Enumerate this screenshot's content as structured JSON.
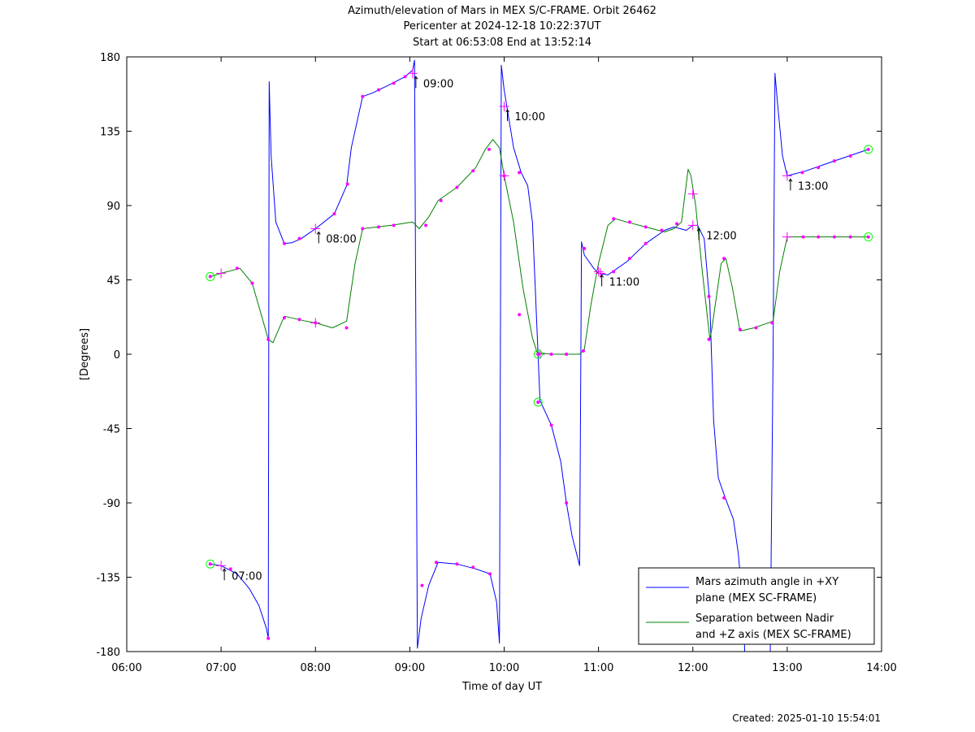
{
  "chart_data": {
    "type": "line",
    "title": [
      "Azimuth/elevation of Mars in MEX S/C-FRAME.  Orbit 26462",
      "Pericenter at 2024-12-18 10:22:37UT",
      "Start at 06:53:08 End at 13:52:14"
    ],
    "xlabel": "Time of day UT",
    "ylabel": "[Degrees]",
    "xlim": [
      6.0,
      14.0
    ],
    "ylim": [
      -180,
      180
    ],
    "xticks": [
      {
        "v": 6,
        "label": "06:00"
      },
      {
        "v": 7,
        "label": "07:00"
      },
      {
        "v": 8,
        "label": "08:00"
      },
      {
        "v": 9,
        "label": "09:00"
      },
      {
        "v": 10,
        "label": "10:00"
      },
      {
        "v": 11,
        "label": "11:00"
      },
      {
        "v": 12,
        "label": "12:00"
      },
      {
        "v": 13,
        "label": "13:00"
      },
      {
        "v": 14,
        "label": "14:00"
      }
    ],
    "yticks": [
      {
        "v": 180,
        "label": "180"
      },
      {
        "v": 135,
        "label": "135"
      },
      {
        "v": 90,
        "label": "90"
      },
      {
        "v": 45,
        "label": "45"
      },
      {
        "v": 0,
        "label": "0"
      },
      {
        "v": -45,
        "label": "-45"
      },
      {
        "v": -90,
        "label": "-90"
      },
      {
        "v": -135,
        "label": "-135"
      },
      {
        "v": -180,
        "label": "-180"
      }
    ],
    "legend_position": "bottom-right",
    "series": [
      {
        "name": "Mars azimuth angle in +XY plane (MEX SC-FRAME)",
        "legend_lines": [
          "Mars azimuth angle in +XY",
          "plane (MEX SC-FRAME)"
        ],
        "color": "#0000ff",
        "points": [
          [
            6.885,
            -127
          ],
          [
            7.0,
            -128
          ],
          [
            7.17,
            -133
          ],
          [
            7.3,
            -142
          ],
          [
            7.4,
            -152
          ],
          [
            7.48,
            -166
          ],
          [
            7.5,
            -172
          ],
          [
            7.51,
            165
          ],
          [
            7.53,
            120
          ],
          [
            7.58,
            80
          ],
          [
            7.67,
            67
          ],
          [
            7.75,
            67.5
          ],
          [
            7.85,
            70
          ],
          [
            8.0,
            76
          ],
          [
            8.2,
            85
          ],
          [
            8.33,
            102
          ],
          [
            8.38,
            125
          ],
          [
            8.5,
            156
          ],
          [
            8.6,
            158
          ],
          [
            8.78,
            163
          ],
          [
            8.95,
            168
          ],
          [
            9.03,
            172
          ],
          [
            9.05,
            178
          ],
          [
            9.08,
            -178
          ],
          [
            9.12,
            -160
          ],
          [
            9.2,
            -140
          ],
          [
            9.3,
            -126
          ],
          [
            9.5,
            -127
          ],
          [
            9.7,
            -130
          ],
          [
            9.85,
            -133
          ],
          [
            9.92,
            -150
          ],
          [
            9.95,
            -175
          ],
          [
            9.97,
            175
          ],
          [
            10.0,
            160
          ],
          [
            10.1,
            125
          ],
          [
            10.18,
            110
          ],
          [
            10.25,
            102
          ],
          [
            10.3,
            80
          ],
          [
            10.33,
            40
          ],
          [
            10.38,
            -28
          ],
          [
            10.5,
            -43
          ],
          [
            10.6,
            -65
          ],
          [
            10.66,
            -90
          ],
          [
            10.72,
            -110
          ],
          [
            10.8,
            -128
          ],
          [
            10.82,
            68
          ],
          [
            10.85,
            60
          ],
          [
            10.95,
            52
          ],
          [
            11.0,
            49
          ],
          [
            11.1,
            48
          ],
          [
            11.3,
            56
          ],
          [
            11.5,
            67
          ],
          [
            11.7,
            75
          ],
          [
            11.8,
            77
          ],
          [
            11.93,
            75
          ],
          [
            12.0,
            78
          ],
          [
            12.05,
            78
          ],
          [
            12.12,
            70
          ],
          [
            12.18,
            30
          ],
          [
            12.22,
            -40
          ],
          [
            12.27,
            -75
          ],
          [
            12.35,
            -88
          ],
          [
            12.43,
            -100
          ],
          [
            12.48,
            -120
          ],
          [
            12.53,
            -150
          ],
          [
            12.55,
            -180
          ],
          [
            12.82,
            -180
          ],
          [
            12.85,
            0
          ],
          [
            12.87,
            170
          ],
          [
            12.9,
            150
          ],
          [
            12.95,
            120
          ],
          [
            13.0,
            108
          ],
          [
            13.2,
            111
          ],
          [
            13.5,
            117
          ],
          [
            13.86,
            124
          ]
        ]
      },
      {
        "name": "Separation between Nadir and +Z axis (MEX SC-FRAME)",
        "legend_lines": [
          "Separation between Nadir",
          "and +Z axis (MEX SC-FRAME)"
        ],
        "color": "#008000",
        "points": [
          [
            6.885,
            47
          ],
          [
            7.0,
            49
          ],
          [
            7.2,
            52
          ],
          [
            7.33,
            43
          ],
          [
            7.42,
            25
          ],
          [
            7.5,
            9
          ],
          [
            7.55,
            7
          ],
          [
            7.67,
            23
          ],
          [
            7.9,
            20
          ],
          [
            8.0,
            19
          ],
          [
            8.18,
            16
          ],
          [
            8.33,
            20
          ],
          [
            8.42,
            55
          ],
          [
            8.5,
            76
          ],
          [
            8.8,
            78
          ],
          [
            9.03,
            80
          ],
          [
            9.1,
            76
          ],
          [
            9.2,
            83
          ],
          [
            9.3,
            93
          ],
          [
            9.5,
            101
          ],
          [
            9.7,
            113
          ],
          [
            9.8,
            124
          ],
          [
            9.88,
            130
          ],
          [
            9.95,
            125
          ],
          [
            10.0,
            108
          ],
          [
            10.1,
            80
          ],
          [
            10.2,
            40
          ],
          [
            10.3,
            10
          ],
          [
            10.35,
            1
          ],
          [
            10.5,
            0
          ],
          [
            10.8,
            0
          ],
          [
            10.85,
            3
          ],
          [
            10.92,
            30
          ],
          [
            11.0,
            55
          ],
          [
            11.1,
            78
          ],
          [
            11.18,
            82
          ],
          [
            11.3,
            80
          ],
          [
            11.5,
            77
          ],
          [
            11.7,
            74
          ],
          [
            11.8,
            76
          ],
          [
            11.88,
            80
          ],
          [
            11.95,
            112
          ],
          [
            11.98,
            108
          ],
          [
            12.03,
            90
          ],
          [
            12.1,
            50
          ],
          [
            12.18,
            9
          ],
          [
            12.2,
            15
          ],
          [
            12.3,
            55
          ],
          [
            12.35,
            58
          ],
          [
            12.42,
            40
          ],
          [
            12.5,
            14
          ],
          [
            12.65,
            16
          ],
          [
            12.85,
            20
          ],
          [
            12.92,
            50
          ],
          [
            13.0,
            71
          ],
          [
            13.2,
            71
          ],
          [
            13.86,
            71
          ]
        ]
      }
    ],
    "markers": [
      [
        6.885,
        -127
      ],
      [
        7.1,
        -130
      ],
      [
        7.5,
        -172
      ],
      [
        9.13,
        -140
      ],
      [
        9.28,
        -126
      ],
      [
        9.5,
        -127
      ],
      [
        9.67,
        -129
      ],
      [
        9.85,
        -133
      ],
      [
        7.67,
        67
      ],
      [
        7.83,
        70
      ],
      [
        8.2,
        85
      ],
      [
        8.34,
        103
      ],
      [
        8.5,
        156
      ],
      [
        8.67,
        160
      ],
      [
        8.83,
        164
      ],
      [
        8.95,
        168
      ],
      [
        10.16,
        110
      ],
      [
        10.16,
        24
      ],
      [
        10.36,
        -29
      ],
      [
        10.5,
        -43
      ],
      [
        10.66,
        -90
      ],
      [
        10.85,
        64
      ],
      [
        11.16,
        50
      ],
      [
        11.33,
        58
      ],
      [
        11.5,
        67
      ],
      [
        11.67,
        75
      ],
      [
        12.17,
        35
      ],
      [
        12.33,
        -87
      ],
      [
        13.16,
        110
      ],
      [
        13.33,
        113
      ],
      [
        13.5,
        117
      ],
      [
        13.67,
        120
      ],
      [
        7.17,
        52
      ],
      [
        7.33,
        43
      ],
      [
        7.5,
        9
      ],
      [
        7.67,
        22
      ],
      [
        7.83,
        21
      ],
      [
        8.0,
        19
      ],
      [
        8.33,
        16
      ],
      [
        8.5,
        76
      ],
      [
        8.67,
        77
      ],
      [
        8.83,
        78
      ],
      [
        9.17,
        78
      ],
      [
        9.33,
        93
      ],
      [
        9.5,
        101
      ],
      [
        9.67,
        111
      ],
      [
        9.84,
        124
      ],
      [
        10.0,
        108
      ],
      [
        10.5,
        0
      ],
      [
        10.66,
        0
      ],
      [
        10.84,
        2
      ],
      [
        11.16,
        82
      ],
      [
        11.33,
        80
      ],
      [
        11.5,
        77
      ],
      [
        11.83,
        79
      ],
      [
        12.17,
        9
      ],
      [
        12.33,
        58
      ],
      [
        12.5,
        15
      ],
      [
        12.67,
        16
      ],
      [
        12.84,
        19
      ],
      [
        13.17,
        71
      ],
      [
        13.33,
        71
      ],
      [
        13.5,
        71
      ],
      [
        13.67,
        71
      ]
    ],
    "crosses": [
      [
        7.0,
        -128
      ],
      [
        7.0,
        49
      ],
      [
        8.0,
        76
      ],
      [
        8.0,
        19
      ],
      [
        9.03,
        170
      ],
      [
        10.0,
        150
      ],
      [
        10.0,
        108
      ],
      [
        11.0,
        50
      ],
      [
        11.02,
        49
      ],
      [
        12.0,
        97
      ],
      [
        12.0,
        78
      ],
      [
        13.0,
        108
      ],
      [
        13.0,
        71
      ],
      [
        10.38,
        0
      ]
    ],
    "circles": [
      [
        6.885,
        -127
      ],
      [
        6.885,
        47
      ],
      [
        10.36,
        0
      ],
      [
        10.36,
        -29
      ],
      [
        13.86,
        124
      ],
      [
        13.86,
        71
      ]
    ],
    "annotations": [
      {
        "label": "07:00",
        "x": 7.0,
        "y": -128
      },
      {
        "label": "08:00",
        "x": 8.0,
        "y": 76
      },
      {
        "label": "09:00",
        "x": 9.03,
        "y": 170
      },
      {
        "label": "10:00",
        "x": 10.0,
        "y": 150
      },
      {
        "label": "11:00",
        "x": 11.0,
        "y": 50
      },
      {
        "label": "12:00",
        "x": 12.03,
        "y": 78
      },
      {
        "label": "13:00",
        "x": 13.0,
        "y": 108
      }
    ],
    "marker_color": "#ff00ff",
    "circle_color": "#00ff00"
  },
  "footer": {
    "created": "Created: 2025-01-10 15:54:01"
  }
}
